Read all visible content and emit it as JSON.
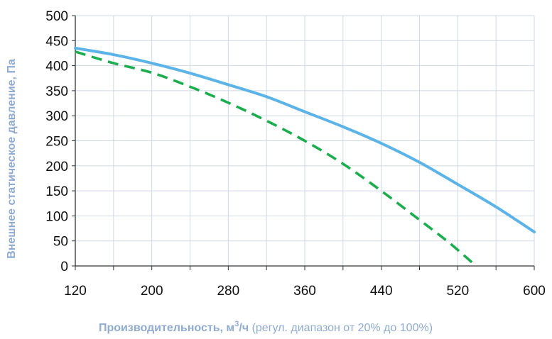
{
  "chart_data": {
    "type": "line",
    "title": "",
    "xlabel": {
      "main": "Производительность, м",
      "superscript": "3",
      "unit_suffix": "/ч",
      "note": " (регул. диапазон от 20% до 100%)"
    },
    "ylabel": "Внешнее статическое давление, Па",
    "xlim": [
      120,
      600
    ],
    "ylim": [
      0,
      500
    ],
    "x_ticks": [
      120,
      200,
      280,
      360,
      440,
      520,
      600
    ],
    "y_ticks": [
      0,
      50,
      100,
      150,
      200,
      250,
      300,
      350,
      400,
      450,
      500
    ],
    "x_grid_step": 40,
    "grid": true,
    "legend": "none",
    "series": [
      {
        "style": "solid",
        "color": "#5bb3e8",
        "points": [
          [
            120,
            435
          ],
          [
            160,
            422
          ],
          [
            200,
            405
          ],
          [
            240,
            385
          ],
          [
            280,
            362
          ],
          [
            320,
            338
          ],
          [
            360,
            308
          ],
          [
            400,
            278
          ],
          [
            440,
            245
          ],
          [
            480,
            207
          ],
          [
            520,
            163
          ],
          [
            560,
            118
          ],
          [
            600,
            68
          ]
        ]
      },
      {
        "style": "dashed",
        "color": "#1cad4f",
        "points": [
          [
            120,
            428
          ],
          [
            160,
            405
          ],
          [
            200,
            386
          ],
          [
            240,
            358
          ],
          [
            280,
            326
          ],
          [
            320,
            290
          ],
          [
            360,
            250
          ],
          [
            400,
            204
          ],
          [
            440,
            150
          ],
          [
            480,
            92
          ],
          [
            510,
            48
          ],
          [
            535,
            7
          ]
        ]
      }
    ]
  }
}
